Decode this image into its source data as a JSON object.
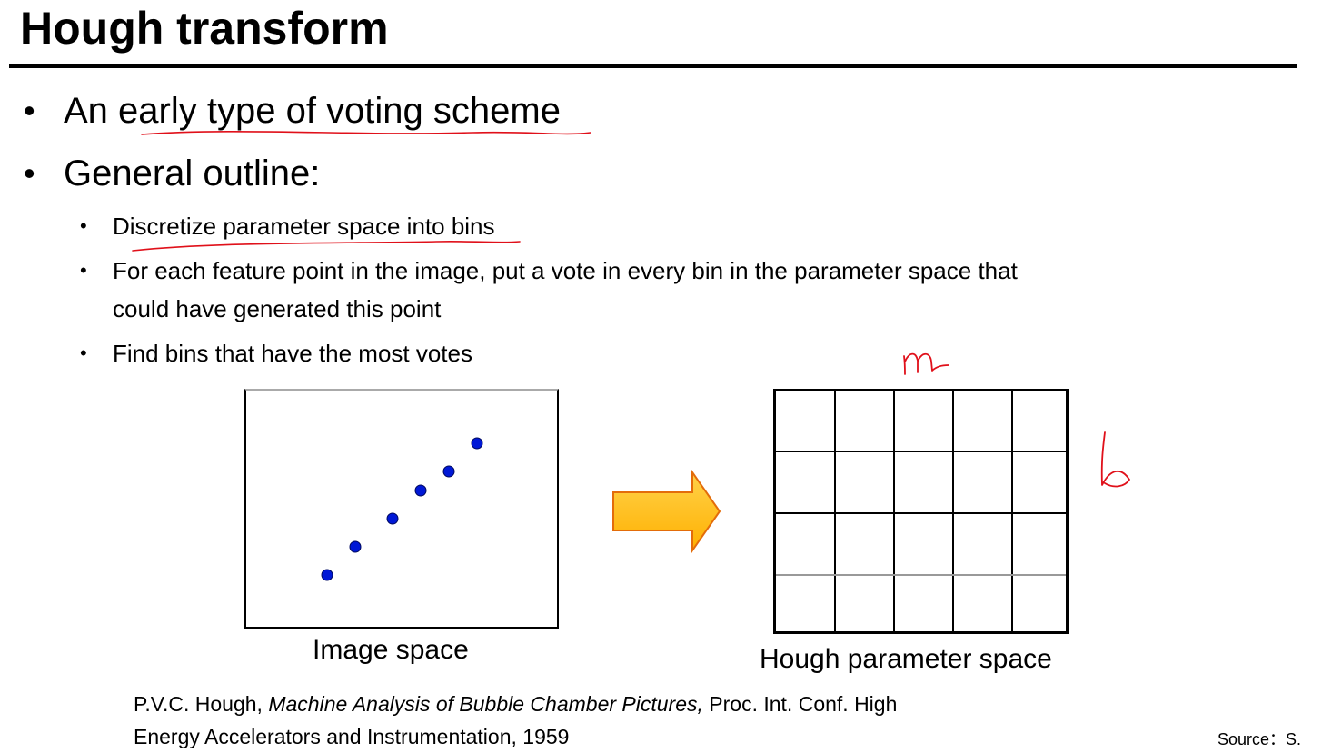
{
  "slide": {
    "title": "Hough transform",
    "bullets": [
      "An early type of voting scheme",
      "General outline:"
    ],
    "sub_bullets": [
      "Discretize parameter space into bins",
      "For each feature point in the image, put a vote in every bin in the parameter space that",
      "could have generated this point",
      "Find bins that have the most votes"
    ],
    "bullet_glyph": "•"
  },
  "figure": {
    "image_space_label": "Image space",
    "parameter_space_label": "Hough parameter space",
    "arrow_color": "#ffc000",
    "arrow_outline_color": "#e36c0a",
    "point_color": "#0018d6",
    "grid": {
      "columns": 5,
      "rows": 4
    },
    "handwritten_m": "m",
    "handwritten_b": "b"
  },
  "reference": {
    "author": "P.V.C. Hough, ",
    "title_italic": "Machine Analysis of Bubble Chamber Pictures,",
    "rest_line1": " Proc. Int. Conf. High",
    "line2": "Energy Accelerators and Instrumentation, 1959"
  },
  "source": "Source：S."
}
